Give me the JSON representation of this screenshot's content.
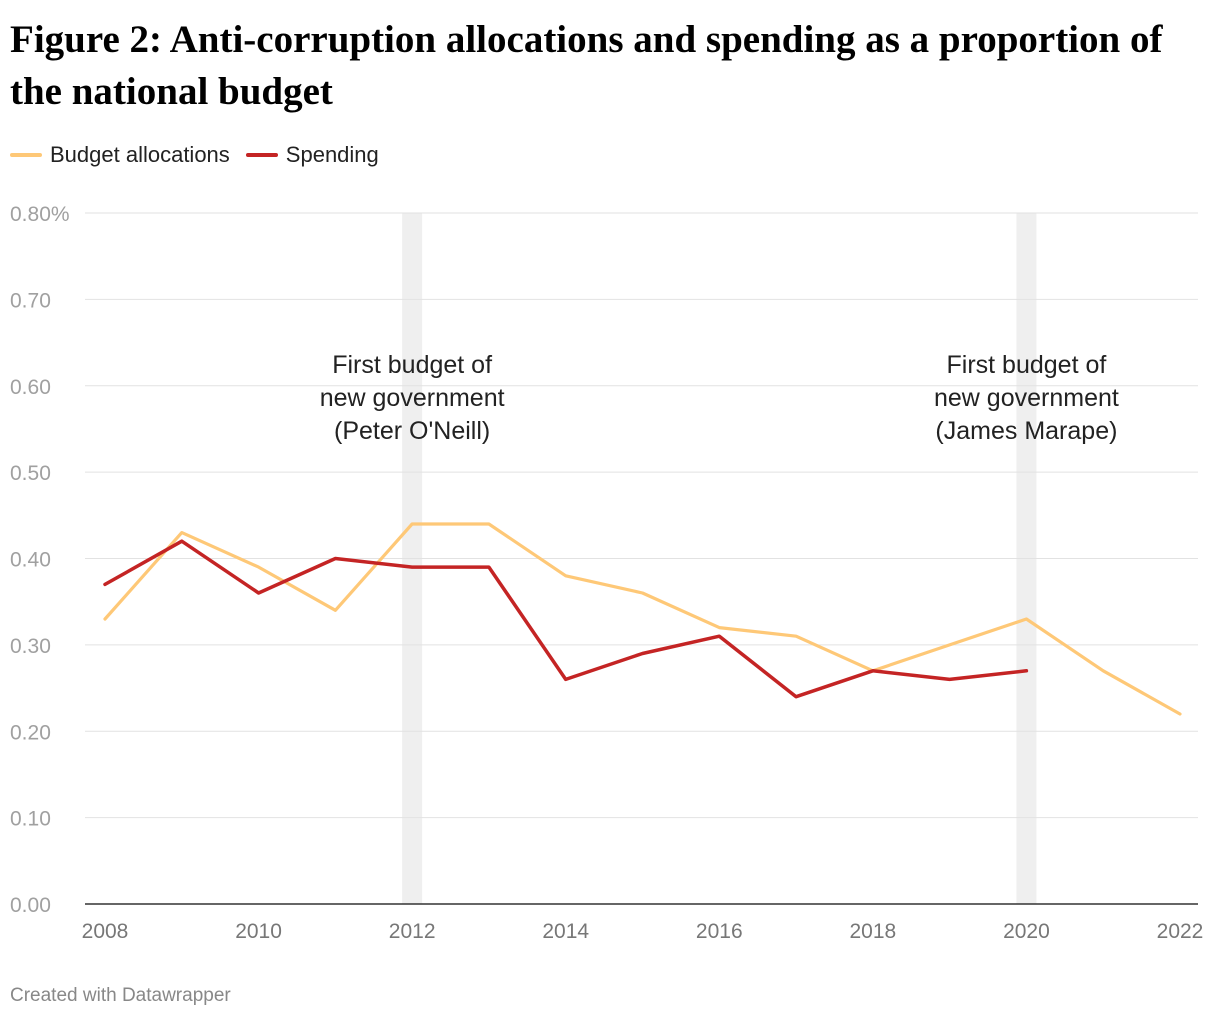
{
  "title": "Figure 2: Anti-corruption allocations and spending as a proportion of the national budget",
  "credit": "Created with Datawrapper",
  "legend": [
    {
      "label": "Budget allocations",
      "color": "#fec877"
    },
    {
      "label": "Spending",
      "color": "#c42424"
    }
  ],
  "chart_data": {
    "type": "line",
    "x": [
      2008,
      2009,
      2010,
      2011,
      2012,
      2013,
      2014,
      2015,
      2016,
      2017,
      2018,
      2019,
      2020,
      2021,
      2022
    ],
    "series": [
      {
        "name": "Budget allocations",
        "color": "#fec877",
        "values": [
          0.33,
          0.43,
          0.39,
          0.34,
          0.44,
          0.44,
          0.38,
          0.36,
          0.32,
          0.31,
          0.27,
          0.3,
          0.33,
          0.27,
          0.22
        ]
      },
      {
        "name": "Spending",
        "color": "#c42424",
        "values": [
          0.37,
          0.42,
          0.36,
          0.4,
          0.39,
          0.39,
          0.26,
          0.29,
          0.31,
          0.24,
          0.27,
          0.26,
          0.27,
          null,
          null
        ]
      }
    ],
    "ylim": [
      0,
      0.8
    ],
    "y_ticks": [
      0,
      0.1,
      0.2,
      0.3,
      0.4,
      0.5,
      0.6,
      0.7,
      0.8
    ],
    "y_tick_labels": [
      "0.00",
      "0.10",
      "0.20",
      "0.30",
      "0.40",
      "0.50",
      "0.60",
      "0.70",
      "0.80%"
    ],
    "x_ticks": [
      2008,
      2010,
      2012,
      2014,
      2016,
      2018,
      2020,
      2022
    ],
    "x_tick_labels": [
      "2008",
      "2010",
      "2012",
      "2014",
      "2016",
      "2018",
      "2020",
      "2022"
    ],
    "xlim": [
      2008,
      2022
    ],
    "grid": true,
    "legend_position": "top-left",
    "highlight_bands": [
      {
        "x": 2012,
        "label_lines": [
          "First budget of",
          "new government",
          "(Peter O'Neill)"
        ]
      },
      {
        "x": 2020,
        "label_lines": [
          "First budget of",
          "new government",
          "(James Marape)"
        ]
      }
    ]
  }
}
